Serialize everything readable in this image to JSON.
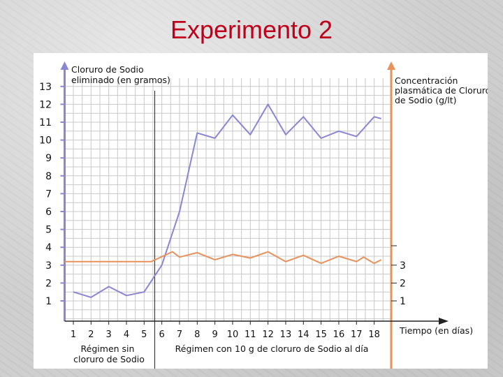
{
  "slide": {
    "title": "Experimento 2"
  },
  "colors": {
    "title": "#c0001a",
    "left_axis": "#8a86d4",
    "right_axis": "#e8915a",
    "sodium_excreted_line": "#8a86d4",
    "plasma_concentration_line": "#e8915a",
    "grid": "#c8c8c8"
  },
  "chart_data": {
    "type": "line",
    "left_axis_label": [
      "Cloruro de Sodio",
      "eliminado (en gramos)"
    ],
    "right_axis_label": [
      "Concentración",
      "plasmática de Cloruro",
      "de Sodio (g/lt)"
    ],
    "xlabel": "Tiempo (en días)",
    "x": [
      1,
      2,
      3,
      4,
      5,
      6,
      7,
      8,
      9,
      10,
      11,
      12,
      13,
      14,
      15,
      16,
      17,
      18
    ],
    "x_tick_labels": [
      "1",
      "2",
      "3",
      "4",
      "5",
      "6",
      "7",
      "8",
      "9",
      "10",
      "11",
      "12",
      "13",
      "14",
      "15",
      "16",
      "17",
      "18"
    ],
    "y_left_ticks": [
      "1",
      "2",
      "3",
      "4",
      "5",
      "6",
      "7",
      "8",
      "9",
      "10",
      "11",
      "12",
      "13"
    ],
    "y_right_ticks": [
      "1",
      "2",
      "3"
    ],
    "ylim_left": [
      0,
      14
    ],
    "xlim": [
      0,
      18.6
    ],
    "grid": true,
    "series": [
      {
        "axis": "left",
        "x": [
          1,
          2,
          3,
          4,
          5,
          6,
          7,
          8,
          9,
          10,
          11,
          12,
          13,
          14,
          15,
          16,
          17,
          18,
          18.4
        ],
        "values": [
          1.5,
          1.2,
          1.8,
          1.3,
          1.5,
          3.0,
          6.0,
          10.4,
          10.1,
          11.4,
          10.3,
          12.0,
          10.3,
          11.3,
          10.1,
          10.5,
          10.2,
          11.3,
          11.2
        ]
      },
      {
        "axis": "right",
        "x": [
          0,
          5.4,
          6.6,
          7,
          8,
          9,
          10,
          11,
          12,
          13,
          14,
          15,
          16,
          17,
          17.4,
          18,
          18.4
        ],
        "values": [
          3.2,
          3.2,
          3.75,
          3.45,
          3.7,
          3.3,
          3.6,
          3.4,
          3.75,
          3.2,
          3.55,
          3.1,
          3.5,
          3.2,
          3.45,
          3.1,
          3.3
        ]
      }
    ],
    "regime_divider_x": 5.6,
    "regime_labels": [
      [
        "Régimen sin",
        "cloruro de Sodio"
      ],
      [
        "Régimen con 10 g de cloruro de Sodio al día"
      ]
    ]
  }
}
